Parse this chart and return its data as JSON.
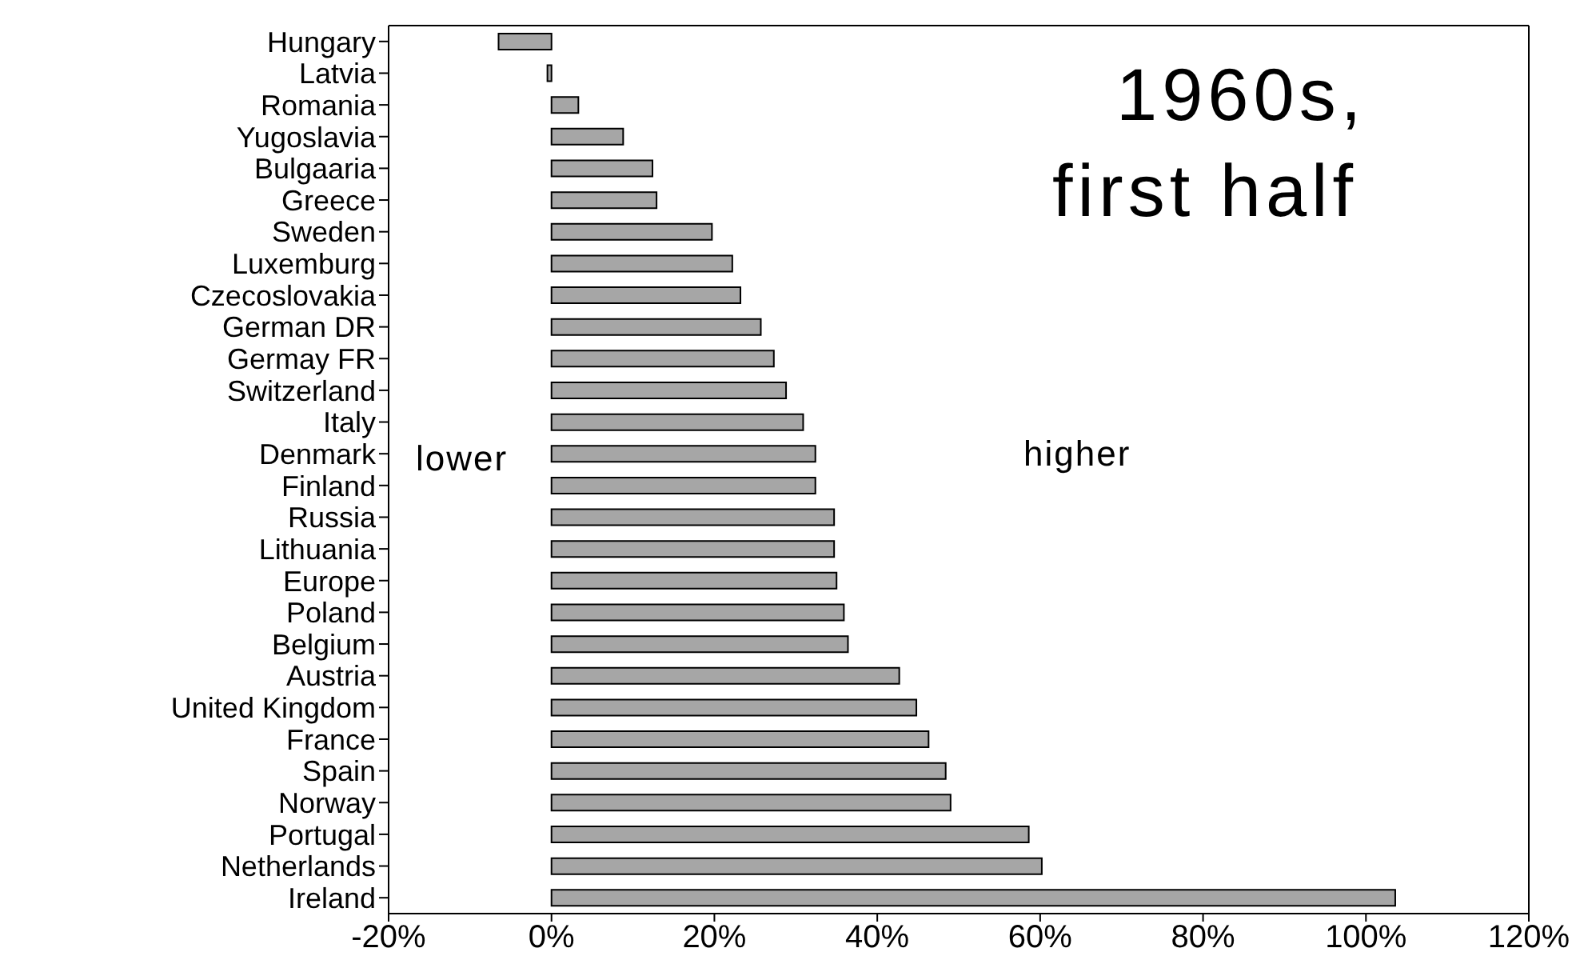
{
  "chart_data": {
    "type": "bar",
    "orientation": "horizontal",
    "categories": [
      "Hungary",
      "Latvia",
      "Romania",
      "Yugoslavia",
      "Bulgaaria",
      "Greece",
      "Sweden",
      "Luxemburg",
      "Czecoslovakia",
      "German DR",
      "Germay FR",
      "Switzerland",
      "Italy",
      "Denmark",
      "Finland",
      "Russia",
      "Lithuania",
      "Europe",
      "Poland",
      "Belgium",
      "Austria",
      "United Kingdom",
      "France",
      "Spain",
      "Norway",
      "Portugal",
      "Netherlands",
      "Ireland"
    ],
    "values": [
      -6.5,
      -0.5,
      3.3,
      8.8,
      12.4,
      12.9,
      19.7,
      22.2,
      23.2,
      25.7,
      27.3,
      28.8,
      30.9,
      32.4,
      32.4,
      34.7,
      34.7,
      35.0,
      35.9,
      36.4,
      42.7,
      44.8,
      46.3,
      48.4,
      49.0,
      58.6,
      60.2,
      103.6
    ],
    "color": "#a6a6a6",
    "xlim": [
      -20,
      120
    ],
    "xticks": [
      {
        "value": -20,
        "label": "-20%"
      },
      {
        "value": 0,
        "label": "0%"
      },
      {
        "value": 20,
        "label": "20%"
      },
      {
        "value": 40,
        "label": "40%"
      },
      {
        "value": 60,
        "label": "60%"
      },
      {
        "value": 80,
        "label": "80%"
      },
      {
        "value": 100,
        "label": "100%"
      },
      {
        "value": 120,
        "label": "120%"
      }
    ],
    "annotations": [
      "1960s,",
      "first half",
      "lower",
      "higher"
    ],
    "grid": false,
    "legend": false
  }
}
